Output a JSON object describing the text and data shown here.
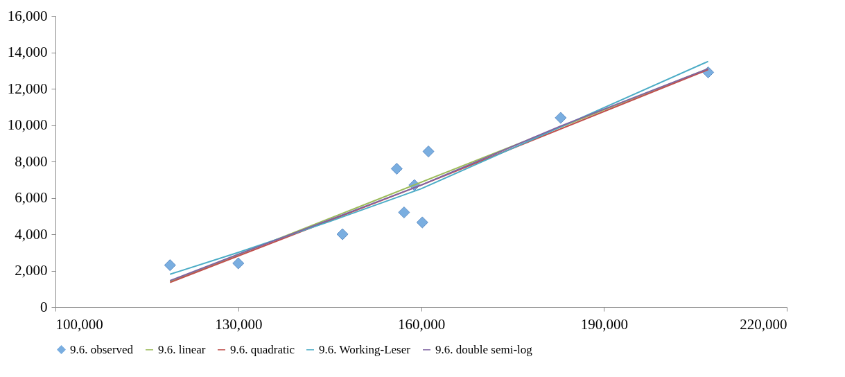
{
  "chart_data": {
    "type": "scatter",
    "xlim": [
      100000,
      220000
    ],
    "xticks": [
      {
        "value": 100000,
        "label": "100,000"
      },
      {
        "value": 130000,
        "label": "130,000"
      },
      {
        "value": 160000,
        "label": "160,000"
      },
      {
        "value": 190000,
        "label": "190,000"
      },
      {
        "value": 220000,
        "label": "220,000"
      }
    ],
    "ylim": [
      0,
      16000
    ],
    "yticks": [
      0,
      {
        "value": 2000,
        "label": "2,000"
      },
      {
        "value": 4000,
        "label": "4,000"
      },
      {
        "value": 6000,
        "label": "6,000"
      },
      {
        "value": 8000,
        "label": "8,000"
      },
      {
        "value": 10000,
        "label": "10,000"
      },
      {
        "value": 12000,
        "label": "12,000"
      },
      {
        "value": 14000,
        "label": "14,000"
      },
      {
        "value": 16000,
        "label": "16,000"
      }
    ],
    "grid": false,
    "legend": "bottom",
    "series": [
      {
        "name": "9.6. observed",
        "marker": "diamond",
        "color": "#7aaee0",
        "x": [
          118800,
          130000,
          147100,
          156000,
          157200,
          158900,
          160200,
          161200,
          182900,
          207100
        ],
        "values": [
          2300,
          2400,
          4000,
          7600,
          5200,
          6700,
          4650,
          8550,
          10400,
          12900
        ]
      },
      {
        "name": "9.6. linear",
        "type": "line",
        "marker": "none",
        "color": "#9bbb59",
        "x": [
          118800,
          207100
        ],
        "values": [
          1400,
          13100
        ]
      },
      {
        "name": "9.6. quadratic",
        "type": "line",
        "marker": "none",
        "color": "#c0504d",
        "x": [
          118800,
          160000,
          207100
        ],
        "values": [
          1350,
          6700,
          13050
        ]
      },
      {
        "name": "9.6. Working-Leser",
        "type": "line",
        "marker": "none",
        "color": "#4bacc6",
        "x": [
          118800,
          130000,
          145000,
          160000,
          182900,
          207100
        ],
        "values": [
          1800,
          3000,
          4700,
          6500,
          9900,
          13500
        ]
      },
      {
        "name": "9.6. double semi-log",
        "type": "line",
        "marker": "none",
        "color": "#8064a2",
        "x": [
          118800,
          130000,
          160000,
          182900,
          207100
        ],
        "values": [
          1450,
          2900,
          6700,
          9950,
          13100
        ]
      }
    ]
  }
}
